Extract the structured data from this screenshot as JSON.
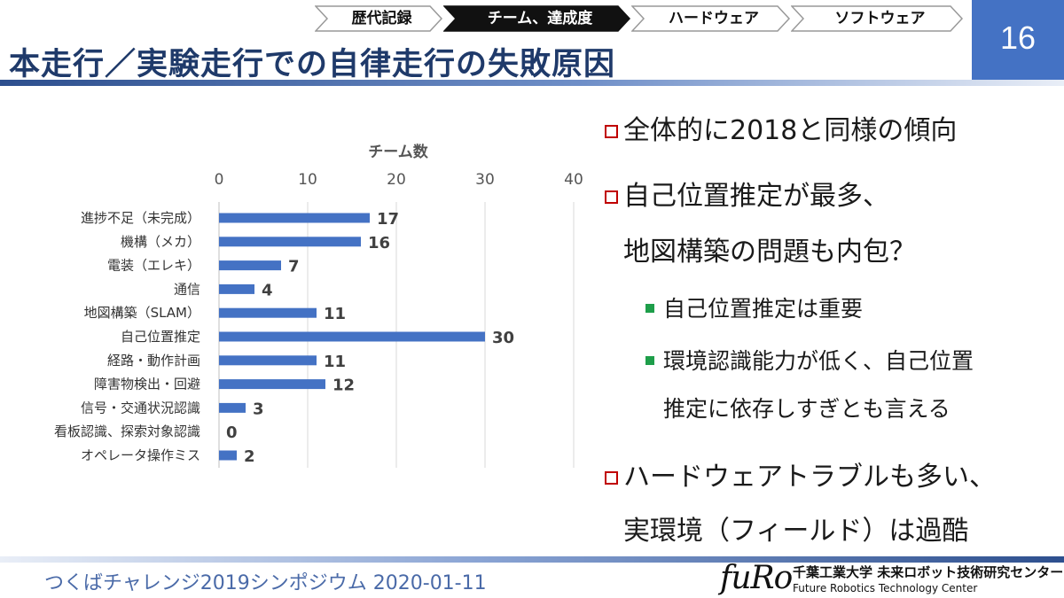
{
  "header": {
    "tabs": [
      {
        "label": "歴代記録",
        "active": false
      },
      {
        "label": "チーム、達成度",
        "active": true
      },
      {
        "label": "ハードウェア",
        "active": false
      },
      {
        "label": "ソフトウェア",
        "active": false
      }
    ],
    "title": "本走行／実験走行での自律走行の失敗原因",
    "page_number": "16"
  },
  "chart_data": {
    "type": "bar",
    "orientation": "horizontal",
    "title": "チーム数",
    "categories": [
      "進捗不足（未完成）",
      "機構（メカ）",
      "電装（エレキ）",
      "通信",
      "地図構築（SLAM）",
      "自己位置推定",
      "経路・動作計画",
      "障害物検出・回避",
      "信号・交通状況認識",
      "看板認識、探索対象認識",
      "オペレータ操作ミス"
    ],
    "values": [
      17,
      16,
      7,
      4,
      11,
      30,
      11,
      12,
      3,
      0,
      2
    ],
    "xlim": [
      0,
      40
    ],
    "xticks": [
      "0",
      "10",
      "20",
      "30",
      "40"
    ],
    "axis_position": "top",
    "grid": true,
    "data_labels": true,
    "bar_color": "#4472c4"
  },
  "bullets": {
    "b1": "全体的に2018と同様の傾向",
    "b2_line1": "自己位置推定が最多、",
    "b2_line2": "地図構築の問題も内包？",
    "sub1": "自己位置推定は重要",
    "sub2_line1": "環境認識能力が低く、自己位置",
    "sub2_line2": "推定に依存しすぎとも言える",
    "b3_line1": "ハードウェアトラブルも多い、",
    "b3_line2": "実環境（フィールド）は過酷"
  },
  "footer": {
    "text": "つくばチャレンジ2019シンポジウム 2020-01-11",
    "logo": "fuRo",
    "org_jp": "千葉工業大学 未来ロボット技術研究センター",
    "org_en": "Future Robotics Technology Center"
  },
  "colors": {
    "accent": "#4472c4",
    "title": "#1f3a6a",
    "bullet_red": "#c00000",
    "bullet_green": "#1e9e4a"
  }
}
